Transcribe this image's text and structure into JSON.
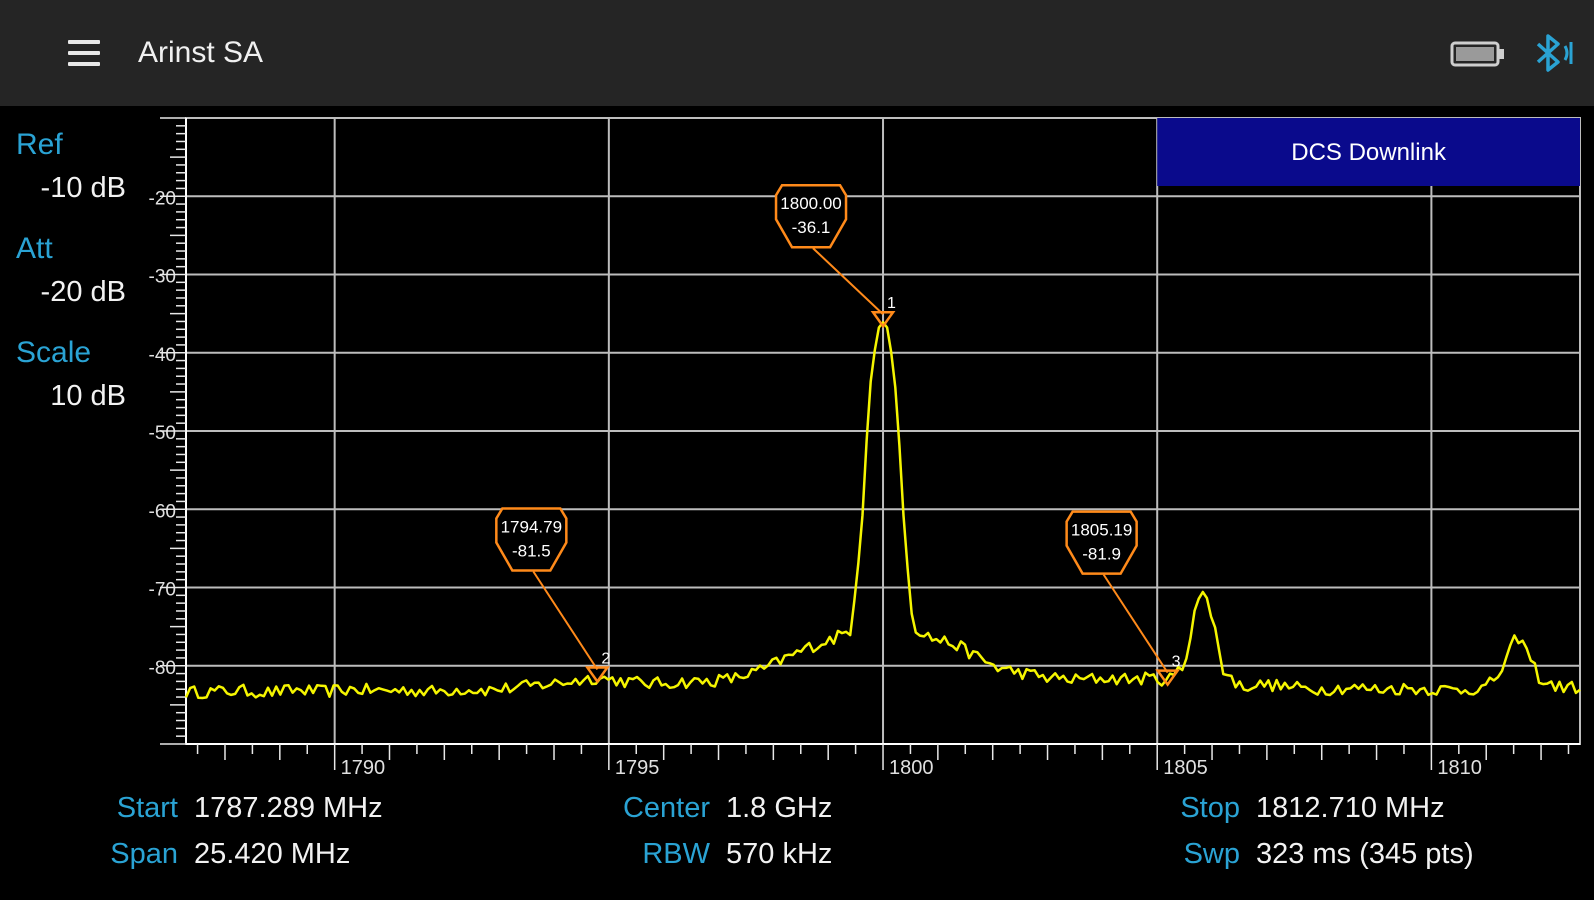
{
  "app": {
    "title": "Arinst SA"
  },
  "status_icons": [
    "battery-icon",
    "bluetooth-icon"
  ],
  "side_panel": {
    "ref_label": "Ref",
    "ref_value": "-10 dB",
    "att_label": "Att",
    "att_value": "-20 dB",
    "scale_label": "Scale",
    "scale_value": "10  dB"
  },
  "band_label": "DCS Downlink",
  "bottom": {
    "start_label": "Start",
    "start_value": "1787.289 MHz",
    "span_label": "Span",
    "span_value": "25.420 MHz",
    "center_label": "Center",
    "center_value": "1.8 GHz",
    "rbw_label": "RBW",
    "rbw_value": "570 kHz",
    "stop_label": "Stop",
    "stop_value": "1812.710 MHz",
    "swp_label": "Swp",
    "swp_value": "323 ms (345 pts)"
  },
  "colors": {
    "accent": "#2aa3d4",
    "trace": "#f5f500",
    "marker": "#ff8a1a",
    "band": "#0a0a8c",
    "grid": "#bdbdbd"
  },
  "chart_data": {
    "type": "line",
    "xlim": [
      1787.289,
      1812.71
    ],
    "ylim": [
      -90,
      -10
    ],
    "x_ticks": [
      "1790",
      "1795",
      "1800",
      "1805",
      "1810"
    ],
    "y_ticks": [
      "-20",
      "-30",
      "-40",
      "-50",
      "-60",
      "-70",
      "-80"
    ],
    "series": [
      {
        "values": [
          [
            1787.3,
            -83.4
          ],
          [
            1787.8,
            -83.3
          ],
          [
            1788.3,
            -83.2
          ],
          [
            1788.8,
            -83.4
          ],
          [
            1789.3,
            -83.1
          ],
          [
            1789.8,
            -83.3
          ],
          [
            1790.3,
            -83.0
          ],
          [
            1790.8,
            -83.2
          ],
          [
            1791.3,
            -83.1
          ],
          [
            1791.8,
            -83.3
          ],
          [
            1792.3,
            -83.0
          ],
          [
            1792.8,
            -83.1
          ],
          [
            1793.3,
            -82.8
          ],
          [
            1793.8,
            -82.4
          ],
          [
            1794.3,
            -82.0
          ],
          [
            1794.79,
            -81.5
          ],
          [
            1795.3,
            -82.0
          ],
          [
            1795.8,
            -82.3
          ],
          [
            1796.3,
            -82.1
          ],
          [
            1796.8,
            -82.0
          ],
          [
            1797.3,
            -81.6
          ],
          [
            1797.8,
            -80.5
          ],
          [
            1798.3,
            -78.8
          ],
          [
            1798.7,
            -77.5
          ],
          [
            1799.1,
            -76.5
          ],
          [
            1799.4,
            -75.5
          ],
          [
            1799.6,
            -64.0
          ],
          [
            1799.75,
            -45.0
          ],
          [
            1799.9,
            -37.0
          ],
          [
            1800.0,
            -36.1
          ],
          [
            1800.1,
            -37.0
          ],
          [
            1800.25,
            -46.0
          ],
          [
            1800.4,
            -64.0
          ],
          [
            1800.55,
            -75.0
          ],
          [
            1800.9,
            -76.5
          ],
          [
            1801.3,
            -77.2
          ],
          [
            1801.7,
            -78.8
          ],
          [
            1802.1,
            -80.3
          ],
          [
            1802.6,
            -81.0
          ],
          [
            1803.0,
            -81.5
          ],
          [
            1803.5,
            -81.8
          ],
          [
            1804.0,
            -81.6
          ],
          [
            1804.5,
            -81.7
          ],
          [
            1805.0,
            -81.6
          ],
          [
            1805.19,
            -81.9
          ],
          [
            1805.5,
            -80.0
          ],
          [
            1805.7,
            -72.0
          ],
          [
            1805.85,
            -70.7
          ],
          [
            1806.0,
            -73.5
          ],
          [
            1806.2,
            -80.5
          ],
          [
            1806.5,
            -82.6
          ],
          [
            1807.0,
            -82.4
          ],
          [
            1807.5,
            -82.8
          ],
          [
            1808.0,
            -83.0
          ],
          [
            1808.5,
            -82.8
          ],
          [
            1809.0,
            -83.0
          ],
          [
            1809.5,
            -82.9
          ],
          [
            1810.0,
            -83.0
          ],
          [
            1810.5,
            -83.1
          ],
          [
            1811.0,
            -82.8
          ],
          [
            1811.3,
            -80.5
          ],
          [
            1811.5,
            -77.0
          ],
          [
            1811.6,
            -76.3
          ],
          [
            1811.8,
            -79.0
          ],
          [
            1812.0,
            -82.0
          ],
          [
            1812.3,
            -82.7
          ],
          [
            1812.7,
            -82.8
          ]
        ]
      }
    ],
    "markers": [
      {
        "id": "1",
        "freq_label": "1800.00",
        "level_label": "-36.1",
        "x": 1800.0,
        "y": -36.1
      },
      {
        "id": "2",
        "freq_label": "1794.79",
        "level_label": "-81.5",
        "x": 1794.79,
        "y": -81.5
      },
      {
        "id": "3",
        "freq_label": "1805.19",
        "level_label": "-81.9",
        "x": 1805.19,
        "y": -81.9
      }
    ],
    "band": {
      "label": "DCS Downlink",
      "from": 1805.0,
      "to": 1812.71
    }
  }
}
